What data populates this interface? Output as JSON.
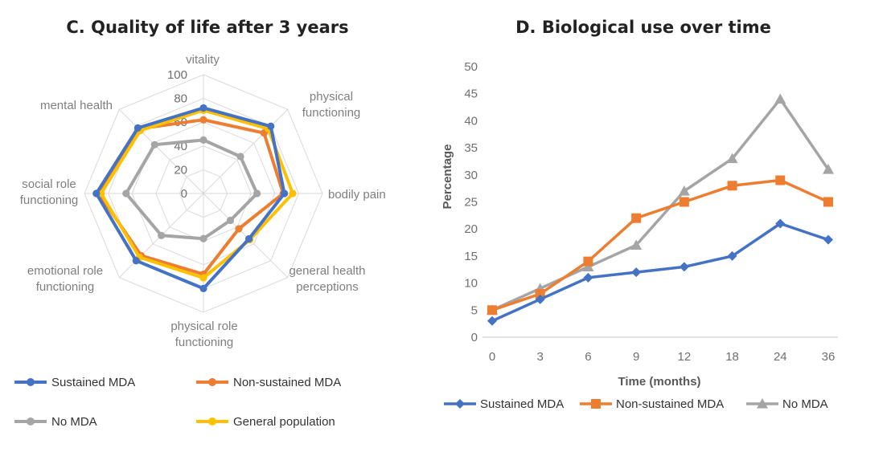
{
  "colors": {
    "blue": "#4472c4",
    "orange": "#ed7d31",
    "gray": "#a5a5a5",
    "yellow": "#ffc000",
    "grid": "#d9d9d9"
  },
  "chart_data": [
    {
      "type": "radar",
      "title": "C. Quality of life after 3 years",
      "axes": [
        [
          "vitality"
        ],
        [
          "physical",
          "functioning"
        ],
        [
          "bodily pain"
        ],
        [
          "general health",
          "perceptions"
        ],
        [
          "physical role",
          "functioning"
        ],
        [
          "emotional role",
          "functioning"
        ],
        [
          "social role",
          "functioning"
        ],
        [
          "mental health"
        ]
      ],
      "rlim": [
        0,
        100
      ],
      "ticks": [
        0,
        20,
        40,
        60,
        80,
        100
      ],
      "series": [
        {
          "name": "Sustained MDA",
          "color": "#4472c4",
          "values": [
            72,
            80,
            68,
            54,
            80,
            80,
            90,
            78
          ]
        },
        {
          "name": "Non-sustained MDA",
          "color": "#ed7d31",
          "values": [
            62,
            72,
            67,
            42,
            68,
            74,
            88,
            77
          ]
        },
        {
          "name": "No MDA",
          "color": "#a5a5a5",
          "values": [
            45,
            44,
            45,
            32,
            38,
            50,
            65,
            58
          ]
        },
        {
          "name": "General population",
          "color": "#ffc000",
          "values": [
            70,
            77,
            75,
            55,
            71,
            76,
            86,
            75
          ]
        }
      ],
      "legend": [
        "Sustained MDA",
        "Non-sustained MDA",
        "No MDA",
        "General population"
      ]
    },
    {
      "type": "line",
      "title": "D. Biological use over time",
      "categories": [
        "0",
        "3",
        "6",
        "9",
        "12",
        "18",
        "24",
        "36"
      ],
      "xlabel": "Time (months)",
      "ylabel": "Percentage",
      "ylim": [
        0,
        50
      ],
      "yticks": [
        0,
        5,
        10,
        15,
        20,
        25,
        30,
        35,
        40,
        45,
        50
      ],
      "series": [
        {
          "name": "Sustained MDA",
          "color": "#4472c4",
          "marker": "diamond",
          "values": [
            3,
            7,
            11,
            12,
            13,
            15,
            21,
            18
          ]
        },
        {
          "name": "Non-sustained MDA",
          "color": "#ed7d31",
          "marker": "square",
          "values": [
            5,
            8,
            14,
            22,
            25,
            28,
            29,
            25
          ]
        },
        {
          "name": "No MDA",
          "color": "#a5a5a5",
          "marker": "triangle",
          "values": [
            5,
            9,
            13,
            17,
            27,
            33,
            44,
            31
          ]
        }
      ],
      "legend_position": "bottom"
    }
  ]
}
